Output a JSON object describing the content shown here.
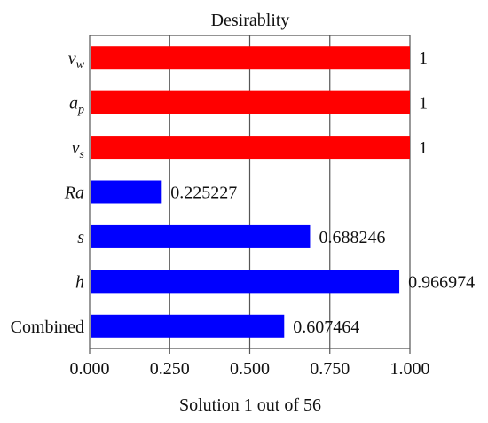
{
  "chart_data": {
    "type": "bar",
    "orientation": "horizontal",
    "title": "Desirablity",
    "xlabel": "Solution 1 out of 56",
    "ylabel": "",
    "xlim": [
      0,
      1
    ],
    "x_ticks": [
      "0.000",
      "0.250",
      "0.500",
      "0.750",
      "1.000"
    ],
    "grid": "vertical",
    "legend": "none",
    "categories": [
      {
        "base": "v",
        "sub": "w",
        "italic": true
      },
      {
        "base": "a",
        "sub": "p",
        "italic": true
      },
      {
        "base": "v",
        "sub": "s",
        "italic": true
      },
      {
        "base": "Ra",
        "sub": "",
        "italic": true
      },
      {
        "base": "s",
        "sub": "",
        "italic": true
      },
      {
        "base": "h",
        "sub": "",
        "italic": true
      },
      {
        "base": "Combined",
        "sub": "",
        "italic": false
      }
    ],
    "values": [
      1,
      1,
      1,
      0.225227,
      0.688246,
      0.966974,
      0.607464
    ],
    "value_labels": [
      "1",
      "1",
      "1",
      "0.225227",
      "0.688246",
      "0.966974",
      "0.607464"
    ],
    "bar_colors": [
      "#ff0000",
      "#ff0000",
      "#ff0000",
      "#0000ff",
      "#0000ff",
      "#0000ff",
      "#0000ff"
    ]
  }
}
